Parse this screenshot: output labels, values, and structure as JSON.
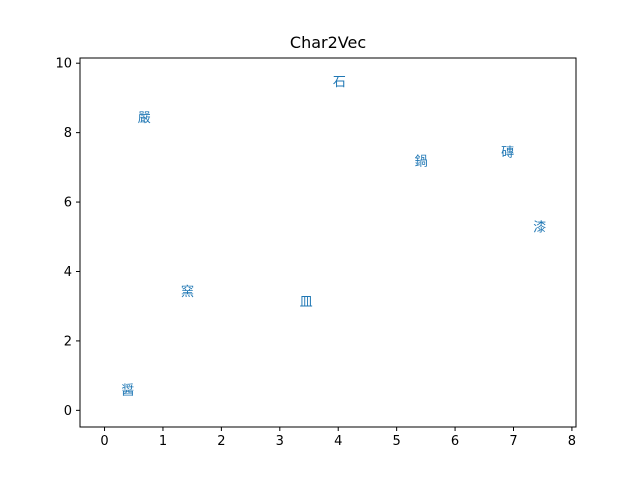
{
  "chart_data": {
    "type": "scatter",
    "title": "Char2Vec",
    "xlabel": "",
    "ylabel": "",
    "xlim": [
      -0.42,
      8.07
    ],
    "ylim": [
      -0.48,
      10.15
    ],
    "xticks": [
      0,
      1,
      2,
      3,
      4,
      5,
      6,
      7,
      8
    ],
    "yticks": [
      0,
      2,
      4,
      6,
      8,
      10
    ],
    "grid": false,
    "color": "#1f77b4",
    "points": [
      {
        "label": "醤",
        "x": 0.4,
        "y": 0.55
      },
      {
        "label": "窯",
        "x": 1.42,
        "y": 3.4
      },
      {
        "label": "皿",
        "x": 3.45,
        "y": 3.1
      },
      {
        "label": "石",
        "x": 4.02,
        "y": 9.45
      },
      {
        "label": "鍋",
        "x": 5.42,
        "y": 7.15
      },
      {
        "label": "磚",
        "x": 6.9,
        "y": 7.42
      },
      {
        "label": "漆",
        "x": 7.45,
        "y": 5.25
      },
      {
        "label": "嚴",
        "x": 0.68,
        "y": 8.4
      }
    ]
  }
}
